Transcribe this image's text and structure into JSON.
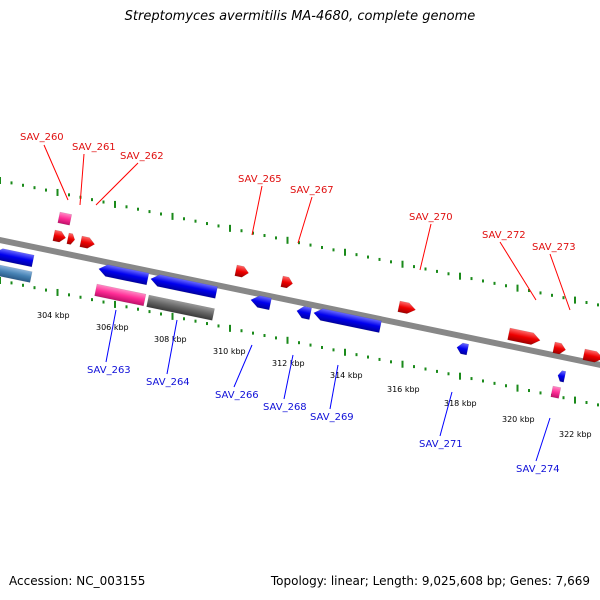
{
  "title": "Streptomyces avermitilis MA-4680, complete genome",
  "footer": {
    "accession": "Accession: NC_003155",
    "topology": "Topology: linear; Length: 9,025,608 bp; Genes: 7,669"
  },
  "ticks": [
    "304 kbp",
    "306 kbp",
    "308 kbp",
    "310 kbp",
    "312 kbp",
    "314 kbp",
    "316 kbp",
    "318 kbp",
    "320 kbp",
    "322 kbp"
  ],
  "genes_forward": [
    "SAV_260",
    "SAV_261",
    "SAV_262",
    "SAV_265",
    "SAV_267",
    "SAV_270",
    "SAV_272",
    "SAV_273"
  ],
  "genes_reverse": [
    "SAV_263",
    "SAV_264",
    "SAV_266",
    "SAV_268",
    "SAV_269",
    "SAV_271",
    "SAV_274"
  ],
  "colors": {
    "forward": "#ff0000",
    "reverse": "#0000ff",
    "rna": "#ff3399",
    "pseudo": "#666666",
    "backbone": "#888888",
    "tick_marks": "#1a8a1a"
  }
}
